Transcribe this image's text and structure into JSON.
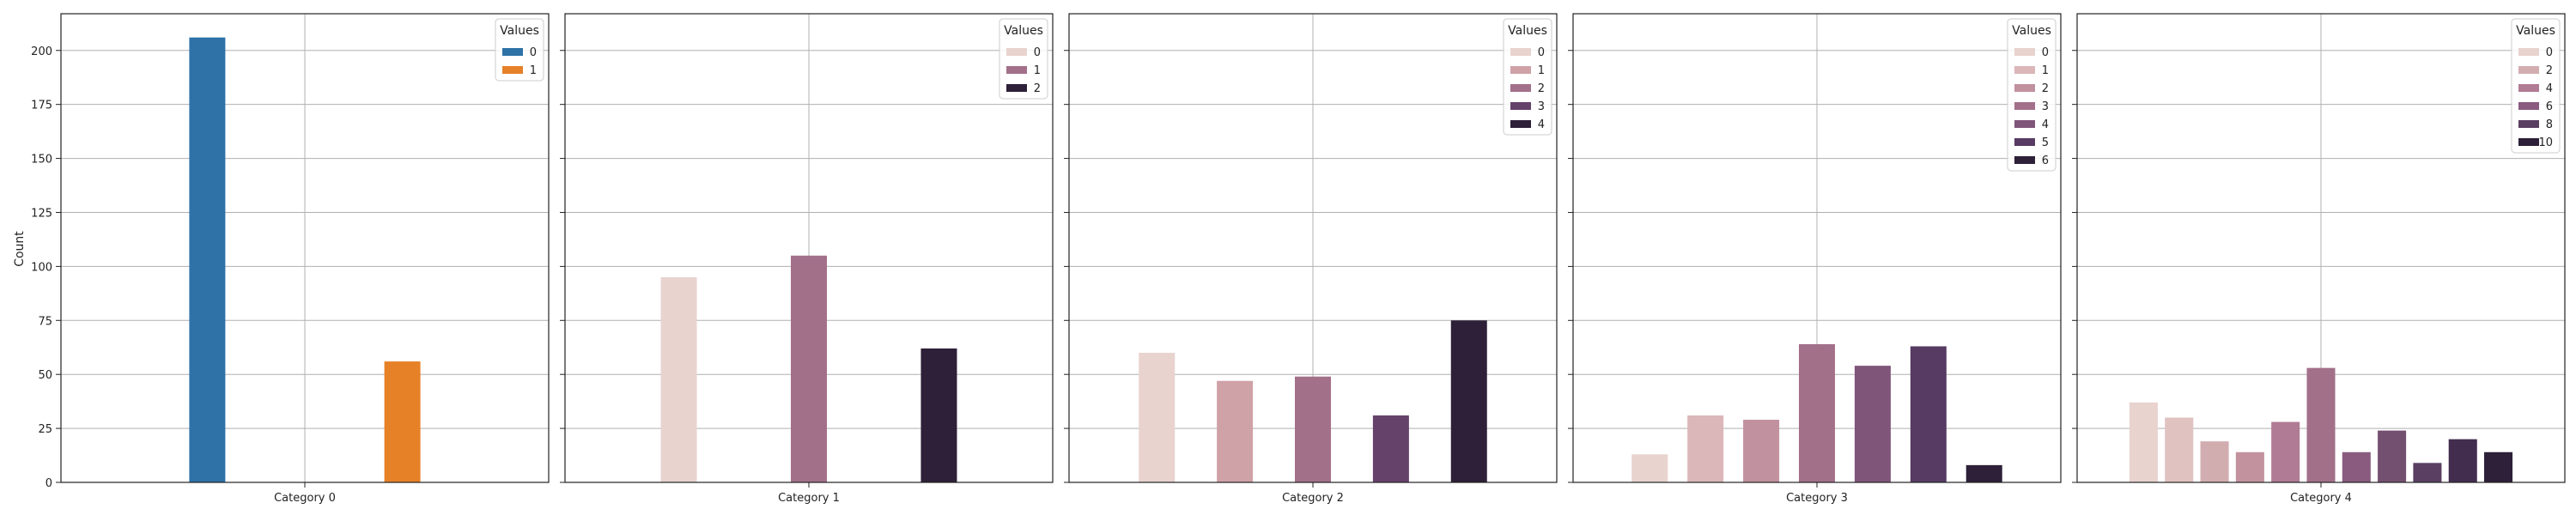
{
  "chart_data": {
    "type": "bar",
    "ylabel": "Count",
    "ylim": [
      0,
      217
    ],
    "yticks": [
      0,
      25,
      50,
      75,
      100,
      125,
      150,
      175,
      200
    ],
    "shared_y": true,
    "grid": true,
    "legend_title": "Values",
    "legend_position": "top-right",
    "panels": [
      {
        "category": "Category 0",
        "levels": [
          0,
          1
        ],
        "legend_entries": [
          "0",
          "1"
        ],
        "values": [
          206,
          56
        ],
        "colors": [
          "#2e72a8",
          "#e68128"
        ]
      },
      {
        "category": "Category 1",
        "levels": [
          0,
          1,
          2
        ],
        "legend_entries": [
          "0",
          "1",
          "2"
        ],
        "values": [
          95,
          105,
          62
        ],
        "colors": [
          "#e8d3cf",
          "#a3708a",
          "#2d2038"
        ]
      },
      {
        "category": "Category 2",
        "levels": [
          0,
          1,
          2,
          3,
          4
        ],
        "legend_entries": [
          "0",
          "1",
          "2",
          "3",
          "4"
        ],
        "values": [
          60,
          47,
          49,
          31,
          75
        ],
        "colors": [
          "#e8d3cf",
          "#cfa2a8",
          "#a3708a",
          "#65426a",
          "#2d2038"
        ]
      },
      {
        "category": "Category 3",
        "levels": [
          0,
          1,
          2,
          3,
          4,
          5,
          6
        ],
        "legend_entries": [
          "0",
          "1",
          "2",
          "3",
          "4",
          "5",
          "6"
        ],
        "values": [
          13,
          31,
          29,
          64,
          54,
          63,
          8
        ],
        "colors": [
          "#e8d3cf",
          "#dbb7b9",
          "#c2919f",
          "#a3708a",
          "#80557a",
          "#573b63",
          "#2d2038"
        ]
      },
      {
        "category": "Category 4",
        "levels": [
          0,
          1,
          2,
          3,
          4,
          5,
          6,
          7,
          8,
          9,
          10
        ],
        "legend_entries": [
          "0",
          "2",
          "4",
          "6",
          "8",
          "10"
        ],
        "values": [
          37,
          30,
          19,
          14,
          28,
          53,
          14,
          24,
          9,
          20,
          14
        ],
        "colors": [
          "#e8d3cf",
          "#e0c2c0",
          "#d2adb0",
          "#c2939f",
          "#b07b94",
          "#a3708a",
          "#8a5b7f",
          "#735070",
          "#5a3f62",
          "#432d4e",
          "#2d2038"
        ],
        "legend_colors": [
          "#e8d3cf",
          "#d2adb0",
          "#b07b94",
          "#8a5b7f",
          "#5a3f62",
          "#2d2038"
        ]
      }
    ]
  }
}
